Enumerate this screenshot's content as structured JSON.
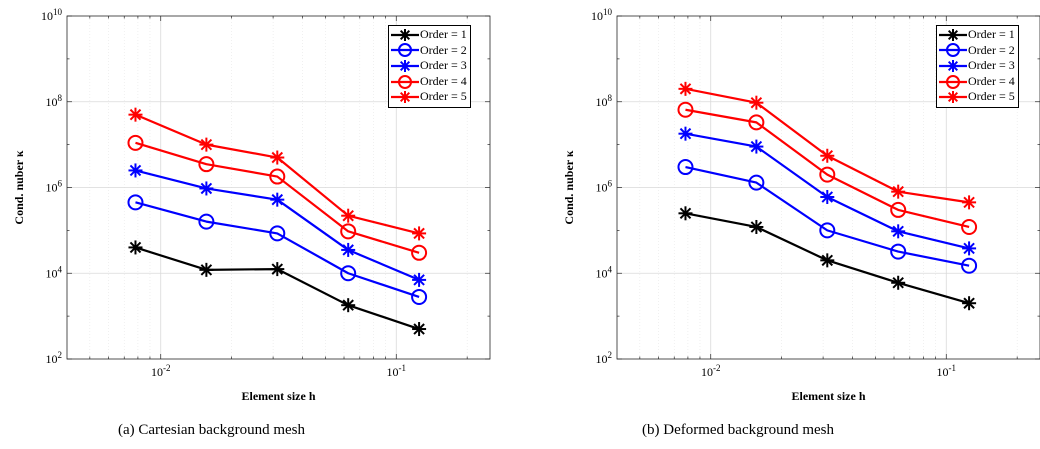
{
  "chart_data": [
    {
      "type": "line",
      "caption": "(a)  Cartesian background mesh",
      "xlabel": "Element size h",
      "ylabel": "Cond. nuber κ",
      "xscale": "log",
      "yscale": "log",
      "xlim": [
        0.004,
        0.25
      ],
      "ylim": [
        100,
        10000000000
      ],
      "x_tick_labels": [
        "10^-2",
        "10^-1"
      ],
      "y_tick_labels": [
        "10^2",
        "10^4",
        "10^6",
        "10^8",
        "10^10"
      ],
      "grid": true,
      "legend_position": "top-right",
      "x": [
        0.0078125,
        0.015625,
        0.03125,
        0.0625,
        0.125
      ],
      "series": [
        {
          "name": "Order = 1",
          "color": "#000000",
          "marker": "asterisk",
          "values": [
            40000,
            12000,
            12500,
            1800,
            500
          ]
        },
        {
          "name": "Order = 2",
          "color": "#0000ff",
          "marker": "circle",
          "values": [
            450000,
            160000,
            85000,
            10000,
            2800
          ]
        },
        {
          "name": "Order = 3",
          "color": "#0000ff",
          "marker": "asterisk",
          "values": [
            2500000,
            950000,
            520000,
            35000,
            7000
          ]
        },
        {
          "name": "Order = 4",
          "color": "#ff0000",
          "marker": "circle",
          "values": [
            11000000,
            3500000,
            1800000,
            95000,
            30000
          ]
        },
        {
          "name": "Order = 5",
          "color": "#ff0000",
          "marker": "asterisk",
          "values": [
            50000000,
            10000000,
            5000000,
            220000,
            85000
          ]
        }
      ]
    },
    {
      "type": "line",
      "caption": "(b)  Deformed background mesh",
      "xlabel": "Element size h",
      "ylabel": "Cond. nuber κ",
      "xscale": "log",
      "yscale": "log",
      "xlim": [
        0.004,
        0.25
      ],
      "ylim": [
        100,
        10000000000
      ],
      "x_tick_labels": [
        "10^-2",
        "10^-1"
      ],
      "y_tick_labels": [
        "10^2",
        "10^4",
        "10^6",
        "10^8",
        "10^10"
      ],
      "grid": true,
      "legend_position": "top-right",
      "x": [
        0.0078125,
        0.015625,
        0.03125,
        0.0625,
        0.125
      ],
      "series": [
        {
          "name": "Order = 1",
          "color": "#000000",
          "marker": "asterisk",
          "values": [
            250000,
            120000,
            20000,
            6000,
            2000
          ]
        },
        {
          "name": "Order = 2",
          "color": "#0000ff",
          "marker": "circle",
          "values": [
            3000000,
            1300000,
            100000,
            32000,
            15000
          ]
        },
        {
          "name": "Order = 3",
          "color": "#0000ff",
          "marker": "asterisk",
          "values": [
            18000000,
            9000000,
            600000,
            95000,
            38000
          ]
        },
        {
          "name": "Order = 4",
          "color": "#ff0000",
          "marker": "circle",
          "values": [
            65000000,
            33000000,
            2000000,
            300000,
            120000
          ]
        },
        {
          "name": "Order = 5",
          "color": "#ff0000",
          "marker": "asterisk",
          "values": [
            200000000,
            95000000,
            5500000,
            800000,
            450000
          ]
        }
      ]
    }
  ]
}
